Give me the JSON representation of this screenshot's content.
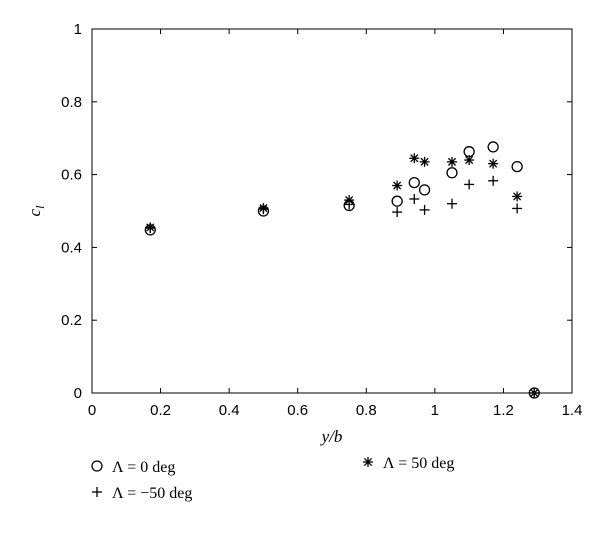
{
  "chart_data": {
    "type": "scatter",
    "xlabel": "y/b",
    "ylabel": "c_l",
    "xlim": [
      0,
      1.4
    ],
    "ylim": [
      0,
      1
    ],
    "xticks": [
      0,
      0.2,
      0.4,
      0.6,
      0.8,
      1,
      1.2,
      1.4
    ],
    "xtick_labels": [
      "0",
      "0.2",
      "0.4",
      "0.6",
      "0.8",
      "1",
      "1.2",
      "1.4"
    ],
    "yticks": [
      0,
      0.2,
      0.4,
      0.6,
      0.8,
      1
    ],
    "ytick_labels": [
      "0",
      "0.2",
      "0.4",
      "0.6",
      "0.8",
      "1"
    ],
    "grid": false,
    "legend_position": "below",
    "series": [
      {
        "name": "Λ = 0 deg",
        "marker": "circle",
        "x": [
          0.17,
          0.5,
          0.75,
          0.89,
          0.94,
          0.97,
          1.05,
          1.1,
          1.17,
          1.24,
          1.29
        ],
        "y": [
          0.448,
          0.5,
          0.515,
          0.527,
          0.578,
          0.558,
          0.605,
          0.663,
          0.676,
          0.622,
          0.0
        ]
      },
      {
        "name": "Λ = −50 deg",
        "marker": "plus",
        "x": [
          0.17,
          0.5,
          0.75,
          0.89,
          0.94,
          0.97,
          1.05,
          1.1,
          1.17,
          1.24,
          1.29
        ],
        "y": [
          0.453,
          0.505,
          0.518,
          0.497,
          0.533,
          0.503,
          0.52,
          0.573,
          0.583,
          0.507,
          0.0
        ]
      },
      {
        "name": "Λ = 50 deg",
        "marker": "asterisk",
        "x": [
          0.17,
          0.5,
          0.75,
          0.89,
          0.94,
          0.97,
          1.05,
          1.1,
          1.17,
          1.24,
          1.29
        ],
        "y": [
          0.455,
          0.508,
          0.53,
          0.57,
          0.645,
          0.635,
          0.635,
          0.64,
          0.63,
          0.54,
          0.0
        ]
      }
    ]
  }
}
